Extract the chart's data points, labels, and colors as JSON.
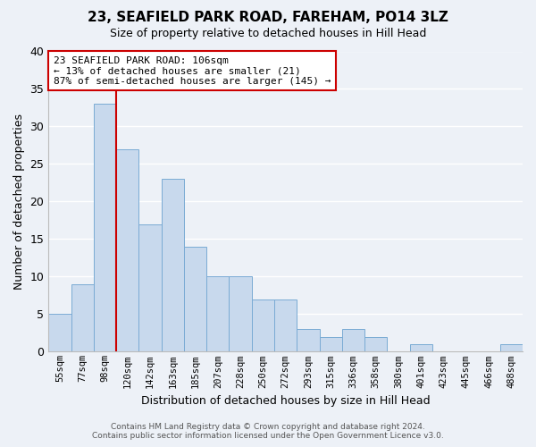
{
  "title": "23, SEAFIELD PARK ROAD, FAREHAM, PO14 3LZ",
  "subtitle": "Size of property relative to detached houses in Hill Head",
  "xlabel": "Distribution of detached houses by size in Hill Head",
  "ylabel": "Number of detached properties",
  "bin_labels": [
    "55sqm",
    "77sqm",
    "98sqm",
    "120sqm",
    "142sqm",
    "163sqm",
    "185sqm",
    "207sqm",
    "228sqm",
    "250sqm",
    "272sqm",
    "293sqm",
    "315sqm",
    "336sqm",
    "358sqm",
    "380sqm",
    "401sqm",
    "423sqm",
    "445sqm",
    "466sqm",
    "488sqm"
  ],
  "bar_values": [
    5,
    9,
    33,
    27,
    17,
    23,
    14,
    10,
    10,
    7,
    7,
    3,
    2,
    3,
    2,
    0,
    1,
    0,
    0,
    0,
    1
  ],
  "bar_color": "#c8d9ed",
  "bar_edge_color": "#7aabd4",
  "vline_x_index": 2,
  "vline_color": "#cc0000",
  "annotation_title": "23 SEAFIELD PARK ROAD: 106sqm",
  "annotation_line1": "← 13% of detached houses are smaller (21)",
  "annotation_line2": "87% of semi-detached houses are larger (145) →",
  "annotation_box_color": "#ffffff",
  "annotation_box_edge": "#cc0000",
  "ylim": [
    0,
    40
  ],
  "yticks": [
    0,
    5,
    10,
    15,
    20,
    25,
    30,
    35,
    40
  ],
  "footer_line1": "Contains HM Land Registry data © Crown copyright and database right 2024.",
  "footer_line2": "Contains public sector information licensed under the Open Government Licence v3.0.",
  "background_color": "#edf1f7",
  "grid_color": "#ffffff"
}
